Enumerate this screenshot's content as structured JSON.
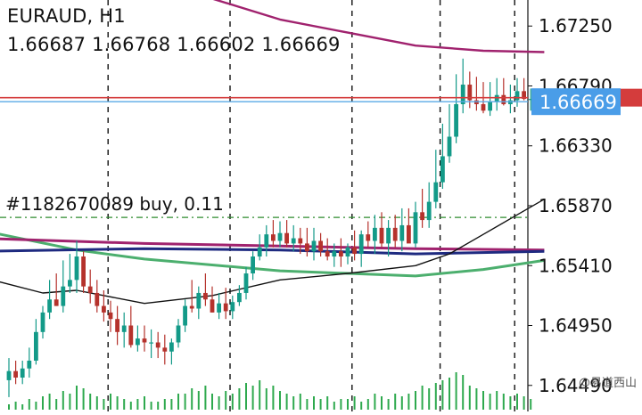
{
  "header": {
    "symbol": "EURAUD",
    "timeframe": "H1",
    "title": "EURAUD, H1",
    "ohlc": "1.66687 1.66768 1.66602 1.66669"
  },
  "trade": {
    "label": "#1182670089 buy, 0.11",
    "price": 1.6578
  },
  "price_labels": {
    "current": "1.66669",
    "ask": "1.66700"
  },
  "watermark": "@易道西山",
  "colors": {
    "background": "#ffffff",
    "bull": "#139a88",
    "bear": "#b5322c",
    "volume": "#2ea94e",
    "ma_purple": "#a0226e",
    "ma_navy": "#1e2a80",
    "ma_green": "#4caf6e",
    "ma_black": "#111111",
    "ask_line": "#d43c3c",
    "bid_line": "#5aa9e6",
    "trade_line": "#2e8b2e",
    "bid_tag": "#4a9de8"
  },
  "chart_data": {
    "type": "candlestick",
    "title": "EURAUD, H1",
    "ylim": [
      1.6429,
      1.6745
    ],
    "y_ticks": [
      "1.67250",
      "1.66790",
      "1.66330",
      "1.65870",
      "1.65410",
      "1.64950",
      "1.64490"
    ],
    "current_price": 1.66669,
    "ask_price": 1.667,
    "open": [
      1.6453,
      1.646,
      1.6455,
      1.6462,
      1.6468,
      1.649,
      1.6505,
      1.6515,
      1.651,
      1.6525,
      1.653,
      1.6548,
      1.6525,
      1.652,
      1.651,
      1.6505,
      1.65,
      1.649,
      1.6495,
      1.648,
      1.6485,
      1.6482,
      1.6482,
      1.6478,
      1.6475,
      1.6482,
      1.6495,
      1.651,
      1.6508,
      1.652,
      1.6515,
      1.6505,
      1.6512,
      1.6506,
      1.6513,
      1.652,
      1.6535,
      1.6548,
      1.6555,
      1.6565,
      1.656,
      1.6566,
      1.6558,
      1.6562,
      1.6558,
      1.6552,
      1.656,
      1.6552,
      1.6548,
      1.6552,
      1.6548,
      1.6555,
      1.655,
      1.6565,
      1.656,
      1.657,
      1.6558,
      1.657,
      1.656,
      1.6572,
      1.6558,
      1.6582,
      1.6576,
      1.659,
      1.6605,
      1.6625,
      1.664,
      1.6665,
      1.668,
      1.6668,
      1.6665,
      1.666,
      1.6667,
      1.6672,
      1.6665,
      1.6668,
      1.6675,
      1.6669
    ],
    "high": [
      1.647,
      1.6468,
      1.6468,
      1.6478,
      1.65,
      1.651,
      1.653,
      1.6535,
      1.6545,
      1.655,
      1.656,
      1.6552,
      1.6538,
      1.653,
      1.6522,
      1.6514,
      1.651,
      1.6505,
      1.651,
      1.6495,
      1.6495,
      1.6492,
      1.649,
      1.6488,
      1.6485,
      1.65,
      1.6515,
      1.653,
      1.6525,
      1.6535,
      1.6525,
      1.652,
      1.6524,
      1.6518,
      1.6526,
      1.654,
      1.6552,
      1.6565,
      1.6572,
      1.6576,
      1.6575,
      1.6576,
      1.6572,
      1.657,
      1.657,
      1.657,
      1.6566,
      1.6562,
      1.6558,
      1.6562,
      1.6558,
      1.6568,
      1.6568,
      1.6575,
      1.658,
      1.6582,
      1.6576,
      1.658,
      1.6585,
      1.6585,
      1.659,
      1.66,
      1.6605,
      1.663,
      1.665,
      1.6665,
      1.6688,
      1.67,
      1.669,
      1.6686,
      1.6682,
      1.6682,
      1.6685,
      1.6685,
      1.668,
      1.6685,
      1.6685,
      1.6677
    ],
    "low": [
      1.644,
      1.645,
      1.645,
      1.6455,
      1.6465,
      1.6485,
      1.65,
      1.651,
      1.6505,
      1.652,
      1.652,
      1.652,
      1.6512,
      1.6505,
      1.6498,
      1.649,
      1.648,
      1.6478,
      1.6478,
      1.6475,
      1.6475,
      1.647,
      1.647,
      1.6465,
      1.6465,
      1.6478,
      1.649,
      1.6505,
      1.65,
      1.651,
      1.6505,
      1.65,
      1.65,
      1.65,
      1.651,
      1.6515,
      1.653,
      1.6545,
      1.6548,
      1.6555,
      1.6555,
      1.6555,
      1.6552,
      1.655,
      1.6548,
      1.6545,
      1.6548,
      1.6545,
      1.654,
      1.654,
      1.6542,
      1.6545,
      1.654,
      1.6555,
      1.655,
      1.6555,
      1.6548,
      1.6555,
      1.6552,
      1.656,
      1.6555,
      1.657,
      1.657,
      1.6585,
      1.66,
      1.662,
      1.6635,
      1.6658,
      1.6662,
      1.666,
      1.6658,
      1.6656,
      1.666,
      1.6664,
      1.6658,
      1.6663,
      1.6668,
      1.666
    ],
    "close": [
      1.646,
      1.6455,
      1.6462,
      1.6468,
      1.649,
      1.6505,
      1.6515,
      1.651,
      1.6525,
      1.653,
      1.6548,
      1.6525,
      1.652,
      1.651,
      1.6505,
      1.65,
      1.649,
      1.6495,
      1.648,
      1.6485,
      1.6482,
      1.6482,
      1.6478,
      1.6475,
      1.6482,
      1.6495,
      1.651,
      1.6508,
      1.652,
      1.6515,
      1.6505,
      1.6512,
      1.6506,
      1.6513,
      1.652,
      1.6535,
      1.6548,
      1.6555,
      1.6565,
      1.656,
      1.6566,
      1.6558,
      1.6562,
      1.6558,
      1.6552,
      1.656,
      1.6552,
      1.6548,
      1.6552,
      1.6548,
      1.6555,
      1.655,
      1.6565,
      1.656,
      1.657,
      1.6558,
      1.657,
      1.656,
      1.6572,
      1.6558,
      1.6582,
      1.6576,
      1.659,
      1.6605,
      1.6625,
      1.664,
      1.6665,
      1.668,
      1.6668,
      1.6665,
      1.666,
      1.6667,
      1.6672,
      1.6665,
      1.6668,
      1.6675,
      1.6669,
      1.6669
    ],
    "volume": [
      2,
      3,
      2,
      4,
      3,
      5,
      6,
      4,
      7,
      6,
      9,
      8,
      6,
      5,
      4,
      6,
      5,
      4,
      3,
      4,
      5,
      3,
      3,
      4,
      4,
      6,
      6,
      8,
      7,
      9,
      6,
      5,
      7,
      6,
      8,
      10,
      9,
      11,
      8,
      9,
      7,
      6,
      5,
      6,
      4,
      5,
      4,
      5,
      3,
      4,
      4,
      5,
      3,
      4,
      6,
      5,
      4,
      6,
      5,
      6,
      7,
      9,
      8,
      10,
      11,
      12,
      14,
      13,
      9,
      8,
      7,
      6,
      7,
      6,
      5,
      6,
      5,
      4
    ],
    "ma_purple": [
      {
        "x": -4,
        "y": 1.6562
      },
      {
        "x": 20,
        "y": 1.6558
      },
      {
        "x": 40,
        "y": 1.6556
      },
      {
        "x": 60,
        "y": 1.6554
      },
      {
        "x": 79,
        "y": 1.6553
      }
    ],
    "ma_purple_top": [
      {
        "x": 23,
        "y": 1.676
      },
      {
        "x": 30,
        "y": 1.6746
      },
      {
        "x": 40,
        "y": 1.673
      },
      {
        "x": 50,
        "y": 1.672
      },
      {
        "x": 60,
        "y": 1.671
      },
      {
        "x": 70,
        "y": 1.6706
      },
      {
        "x": 79,
        "y": 1.6705
      }
    ],
    "ma_navy": [
      {
        "x": -4,
        "y": 1.6552
      },
      {
        "x": 20,
        "y": 1.6554
      },
      {
        "x": 40,
        "y": 1.6553
      },
      {
        "x": 60,
        "y": 1.655
      },
      {
        "x": 79,
        "y": 1.6552
      }
    ],
    "ma_green": [
      {
        "x": -4,
        "y": 1.6568
      },
      {
        "x": 10,
        "y": 1.6553
      },
      {
        "x": 20,
        "y": 1.6546
      },
      {
        "x": 40,
        "y": 1.6537
      },
      {
        "x": 60,
        "y": 1.6533
      },
      {
        "x": 70,
        "y": 1.6538
      },
      {
        "x": 79,
        "y": 1.6545
      }
    ],
    "ma_black": [
      {
        "x": -4,
        "y": 1.6532
      },
      {
        "x": 5,
        "y": 1.652
      },
      {
        "x": 10,
        "y": 1.6522
      },
      {
        "x": 20,
        "y": 1.6512
      },
      {
        "x": 30,
        "y": 1.6518
      },
      {
        "x": 40,
        "y": 1.653
      },
      {
        "x": 50,
        "y": 1.6535
      },
      {
        "x": 60,
        "y": 1.6541
      },
      {
        "x": 65,
        "y": 1.655
      },
      {
        "x": 70,
        "y": 1.6565
      },
      {
        "x": 75,
        "y": 1.658
      },
      {
        "x": 79,
        "y": 1.6592
      }
    ],
    "period_separators": [
      15,
      33,
      51,
      64,
      75
    ]
  }
}
